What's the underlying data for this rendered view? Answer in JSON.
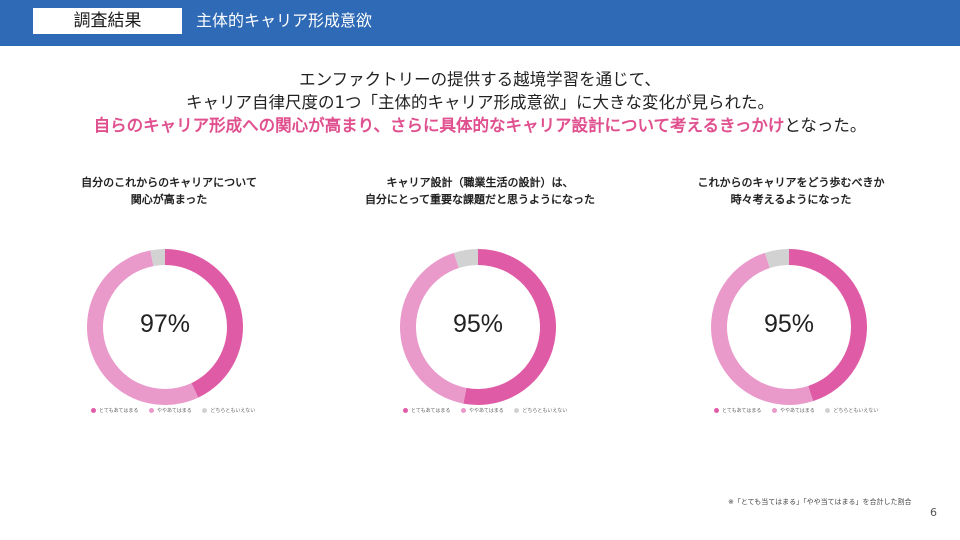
{
  "header": {
    "label": "調査結果",
    "title": "主体的キャリア形成意欲",
    "bar_color": "#2e6ab5"
  },
  "lead": {
    "line1": "エンファクトリーの提供する越境学習を通じて、",
    "line2": "キャリア自律尺度の1つ「主体的キャリア形成意欲」に大きな変化が見られた。",
    "line3_highlight": "自らのキャリア形成への関心が高まり、さらに具体的なキャリア設計について考えるきっかけ",
    "line3_rest": "となった。",
    "highlight_color": "#e0508f"
  },
  "legend_labels": [
    "とてもあてはまる",
    "ややあてはまる",
    "どちらともいえない"
  ],
  "colors": [
    "#e05ba6",
    "#e99acb",
    "#d2d2d2"
  ],
  "chart_data": [
    {
      "type": "pie",
      "title_line1": "自分のこれからのキャリアについて",
      "title_line2": "関心が高まった",
      "center_label": "97%",
      "categories": [
        "とてもあてはまる",
        "ややあてはまる",
        "どちらともいえない"
      ],
      "values": [
        43,
        54,
        3
      ]
    },
    {
      "type": "pie",
      "title_line1": "キャリア設計（職業生活の設計）は、",
      "title_line2": "自分にとって重要な課題だと思うようになった",
      "center_label": "95%",
      "categories": [
        "とてもあてはまる",
        "ややあてはまる",
        "どちらともいえない"
      ],
      "values": [
        53,
        42,
        5
      ]
    },
    {
      "type": "pie",
      "title_line1": "これからのキャリアをどう歩むべきか",
      "title_line2": "時々考えるようになった",
      "center_label": "95%",
      "categories": [
        "とてもあてはまる",
        "ややあてはまる",
        "どちらともいえない"
      ],
      "values": [
        45,
        50,
        5
      ]
    }
  ],
  "footnote": "※「とても当てはまる」「やや当てはまる」を合計した割合",
  "page_number": "6"
}
